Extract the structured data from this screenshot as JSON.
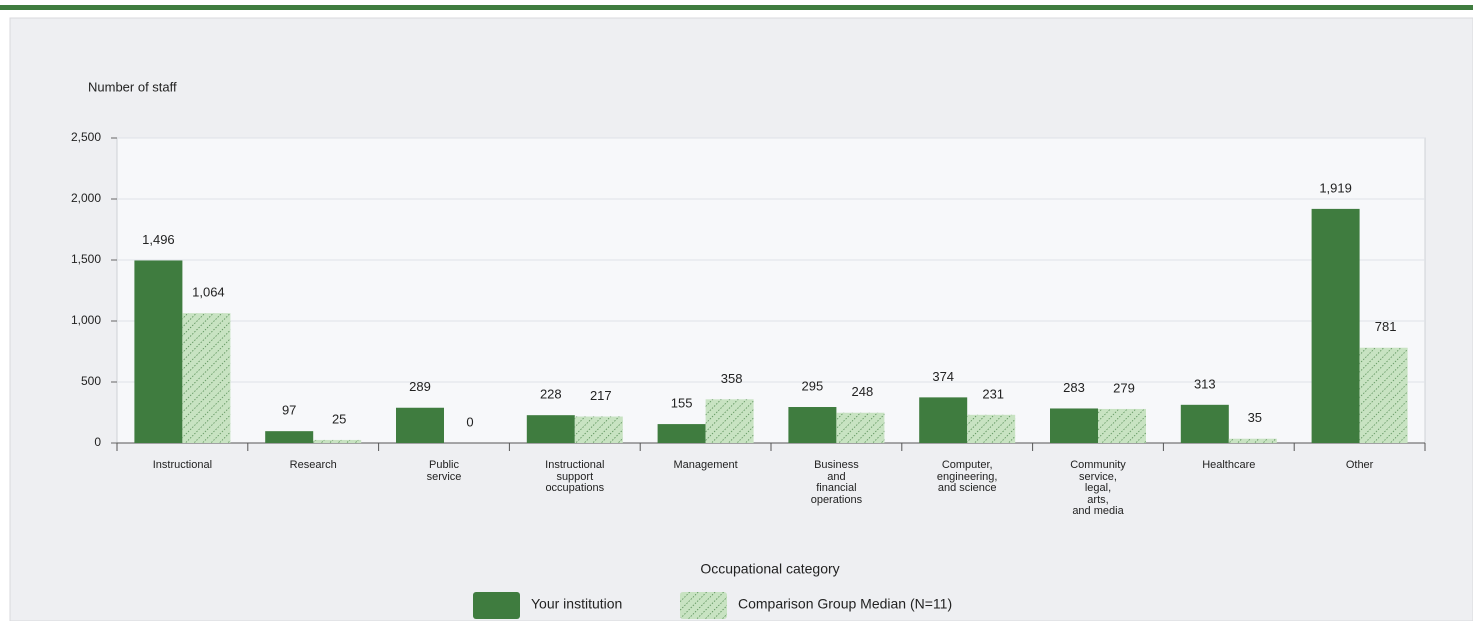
{
  "chart_data": {
    "type": "bar",
    "y_axis_label": "Number of staff",
    "x_axis_label": "Occupational category",
    "categories": [
      "Instructional",
      "Research",
      "Public\nservice",
      "Instructional\nsupport\noccupations",
      "Management",
      "Business\nand\nfinancial\noperations",
      "Computer,\nengineering,\nand science",
      "Community\nservice,\nlegal,\narts,\nand media",
      "Healthcare",
      "Other"
    ],
    "series": [
      {
        "name": "Your institution",
        "color": "#3f7c3f",
        "values": [
          1496,
          97,
          289,
          228,
          155,
          295,
          374,
          283,
          313,
          1919
        ],
        "value_labels": [
          "1,496",
          "97",
          "289",
          "228",
          "155",
          "295",
          "374",
          "283",
          "313",
          "1,919"
        ]
      },
      {
        "name": "Comparison Group Median (N=11)",
        "color": "#c8e3c2",
        "values": [
          1064,
          25,
          0,
          217,
          358,
          248,
          231,
          279,
          35,
          781
        ],
        "value_labels": [
          "1,064",
          "25",
          "0",
          "217",
          "358",
          "248",
          "231",
          "279",
          "35",
          "781"
        ]
      }
    ],
    "ylim": [
      0,
      2500
    ],
    "yticks": [
      0,
      500,
      {
        "value": 1000,
        "label": "1,000"
      },
      {
        "value": 1500,
        "label": "1,500"
      },
      {
        "value": 2000,
        "label": "2,000"
      },
      {
        "value": 2500,
        "label": "2,500"
      }
    ],
    "grid": true,
    "legend": "bottom"
  }
}
